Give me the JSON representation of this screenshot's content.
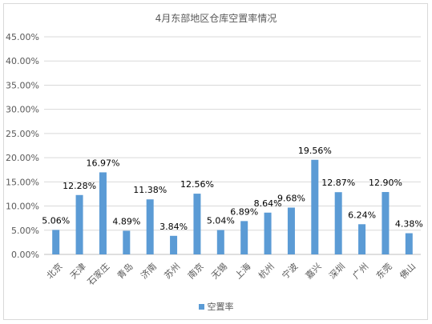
{
  "chart_data": {
    "type": "bar",
    "title": "4月东部地区仓库空置率情况",
    "categories": [
      "北京",
      "天津",
      "石家庄",
      "青岛",
      "济南",
      "苏州",
      "南京",
      "无锡",
      "上海",
      "杭州",
      "宁波",
      "嘉兴",
      "深圳",
      "广州",
      "东莞",
      "佛山"
    ],
    "series": [
      {
        "name": "空置率",
        "values": [
          5.06,
          12.28,
          16.97,
          4.89,
          11.38,
          3.84,
          12.56,
          5.04,
          6.89,
          8.64,
          9.68,
          19.56,
          12.87,
          6.24,
          12.9,
          4.38
        ],
        "labels": [
          "5.06%",
          "12.28%",
          "16.97%",
          "4.89%",
          "11.38%",
          "3.84%",
          "12.56%",
          "5.04%",
          "6.89%",
          "8.64%",
          "9.68%",
          "19.56%",
          "12.87%",
          "6.24%",
          "12.90%",
          "4.38%"
        ]
      }
    ],
    "y_ticks": [
      "0.00%",
      "5.00%",
      "10.00%",
      "15.00%",
      "20.00%",
      "25.00%",
      "30.00%",
      "35.00%",
      "40.00%",
      "45.00%"
    ],
    "ylim": [
      0,
      45
    ],
    "grid": true,
    "legend_position": "bottom",
    "bar_color": "#5b9bd5"
  }
}
